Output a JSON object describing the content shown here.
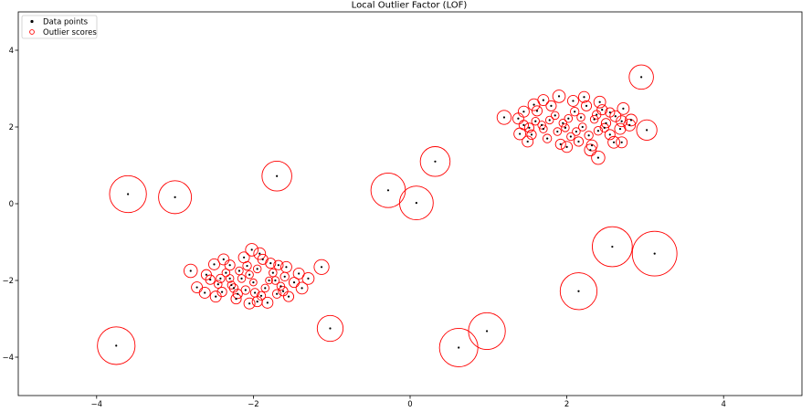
{
  "chart_data": {
    "type": "scatter",
    "title": "Local Outlier Factor (LOF)",
    "xlabel": "",
    "ylabel": "",
    "xlim": [
      -5,
      5
    ],
    "ylim": [
      -5,
      5
    ],
    "xticks": [
      -4,
      -2,
      0,
      2,
      4
    ],
    "yticks": [
      -4,
      -2,
      0,
      2,
      4
    ],
    "xtick_labels": [
      "−4",
      "−2",
      "0",
      "2",
      "4"
    ],
    "ytick_labels": [
      "−4",
      "−2",
      "0",
      "2",
      "4"
    ],
    "grid": false,
    "legend": {
      "placement": "upper-left",
      "entries": [
        {
          "label": "Data points",
          "marker": "dot",
          "color": "#000000"
        },
        {
          "label": "Outlier scores",
          "marker": "circle",
          "color": "#ff0000"
        }
      ]
    },
    "colors": {
      "points": "#000000",
      "scores": "#ff0000"
    },
    "series": [
      {
        "name": "Data points",
        "points": [
          [
            -2.05,
            -1.85,
            0.1
          ],
          [
            -2.3,
            -1.95,
            0.1
          ],
          [
            -1.8,
            -2.0,
            0.09
          ],
          [
            -2.1,
            -2.25,
            0.11
          ],
          [
            -1.95,
            -1.7,
            0.1
          ],
          [
            -2.45,
            -2.1,
            0.1
          ],
          [
            -1.65,
            -2.15,
            0.1
          ],
          [
            -2.2,
            -2.35,
            0.12
          ],
          [
            -1.9,
            -2.4,
            0.11
          ],
          [
            -2.35,
            -1.8,
            0.1
          ],
          [
            -1.75,
            -1.8,
            0.1
          ],
          [
            -2.0,
            -2.05,
            0.09
          ],
          [
            -2.15,
            -1.95,
            0.1
          ],
          [
            -1.85,
            -2.2,
            0.1
          ],
          [
            -2.25,
            -2.2,
            0.11
          ],
          [
            -2.55,
            -1.98,
            0.12
          ],
          [
            -1.6,
            -1.9,
            0.11
          ],
          [
            -2.4,
            -2.3,
            0.12
          ],
          [
            -1.7,
            -2.35,
            0.11
          ],
          [
            -2.08,
            -1.62,
            0.11
          ],
          [
            -1.95,
            -2.55,
            0.13
          ],
          [
            -2.3,
            -1.6,
            0.13
          ],
          [
            -1.78,
            -1.55,
            0.13
          ],
          [
            -2.48,
            -2.42,
            0.14
          ],
          [
            -1.55,
            -2.42,
            0.13
          ],
          [
            -2.6,
            -1.85,
            0.13
          ],
          [
            -1.48,
            -2.05,
            0.13
          ],
          [
            -2.12,
            -1.4,
            0.14
          ],
          [
            -1.88,
            -1.45,
            0.13
          ],
          [
            -2.05,
            -2.6,
            0.14
          ],
          [
            -2.72,
            -2.18,
            0.14
          ],
          [
            -1.42,
            -1.82,
            0.14
          ],
          [
            -1.38,
            -2.2,
            0.15
          ],
          [
            -2.38,
            -1.45,
            0.14
          ],
          [
            -1.68,
            -1.6,
            0.12
          ],
          [
            -2.22,
            -2.48,
            0.13
          ],
          [
            -1.82,
            -2.58,
            0.14
          ],
          [
            -2.62,
            -2.32,
            0.14
          ],
          [
            -1.3,
            -1.95,
            0.15
          ],
          [
            -2.02,
            -1.2,
            0.16
          ],
          [
            -1.92,
            -1.3,
            0.15
          ],
          [
            -2.5,
            -1.58,
            0.14
          ],
          [
            -1.58,
            -1.65,
            0.14
          ],
          [
            -2.28,
            -2.12,
            0.1
          ],
          [
            -1.72,
            -2.0,
            0.1
          ],
          [
            -2.18,
            -1.75,
            0.1
          ],
          [
            -1.98,
            -2.32,
            0.11
          ],
          [
            -2.42,
            -1.95,
            0.11
          ],
          [
            -1.62,
            -2.28,
            0.12
          ],
          [
            -2.8,
            -1.75,
            0.17
          ],
          [
            1.95,
            2.1,
            0.1
          ],
          [
            2.2,
            2.0,
            0.1
          ],
          [
            1.7,
            1.95,
            0.1
          ],
          [
            2.05,
            1.75,
            0.1
          ],
          [
            1.85,
            2.3,
            0.1
          ],
          [
            2.35,
            2.2,
            0.1
          ],
          [
            1.6,
            2.15,
            0.1
          ],
          [
            2.1,
            2.4,
            0.11
          ],
          [
            2.4,
            1.9,
            0.11
          ],
          [
            1.75,
            1.7,
            0.11
          ],
          [
            2.15,
            1.62,
            0.12
          ],
          [
            1.55,
            1.8,
            0.12
          ],
          [
            2.5,
            2.1,
            0.12
          ],
          [
            1.8,
            2.55,
            0.13
          ],
          [
            2.25,
            2.55,
            0.13
          ],
          [
            1.45,
            2.05,
            0.12
          ],
          [
            2.55,
            1.8,
            0.13
          ],
          [
            1.62,
            2.42,
            0.13
          ],
          [
            2.45,
            2.45,
            0.13
          ],
          [
            1.92,
            1.55,
            0.13
          ],
          [
            2.32,
            1.52,
            0.14
          ],
          [
            1.5,
            1.62,
            0.14
          ],
          [
            2.62,
            2.28,
            0.14
          ],
          [
            1.7,
            2.7,
            0.14
          ],
          [
            2.08,
            2.68,
            0.14
          ],
          [
            2.68,
            1.95,
            0.14
          ],
          [
            1.38,
            2.22,
            0.14
          ],
          [
            2.42,
            2.65,
            0.15
          ],
          [
            1.9,
            2.8,
            0.16
          ],
          [
            2.7,
            2.15,
            0.14
          ],
          [
            2.3,
            1.4,
            0.15
          ],
          [
            1.4,
            1.82,
            0.15
          ],
          [
            2.8,
            2.05,
            0.15
          ],
          [
            2.6,
            1.6,
            0.15
          ],
          [
            1.58,
            2.58,
            0.15
          ],
          [
            2.02,
            2.22,
            0.1
          ],
          [
            1.88,
            1.88,
            0.1
          ],
          [
            2.28,
            1.78,
            0.11
          ],
          [
            1.68,
            2.05,
            0.1
          ],
          [
            2.18,
            2.25,
            0.1
          ],
          [
            1.98,
            1.98,
            0.1
          ],
          [
            2.38,
            2.32,
            0.11
          ],
          [
            1.78,
            2.18,
            0.1
          ],
          [
            2.12,
            1.88,
            0.1
          ],
          [
            2.48,
            1.98,
            0.11
          ],
          [
            1.52,
            1.98,
            0.12
          ],
          [
            2.22,
            2.78,
            0.14
          ],
          [
            2.72,
            2.48,
            0.15
          ],
          [
            2.82,
            2.18,
            0.15
          ],
          [
            2.0,
            1.48,
            0.14
          ],
          [
            2.4,
            1.2,
            0.17
          ],
          [
            1.2,
            2.25,
            0.18
          ],
          [
            2.7,
            1.6,
            0.14
          ],
          [
            1.45,
            2.4,
            0.14
          ],
          [
            2.55,
            2.38,
            0.12
          ],
          [
            -3.6,
            0.25,
            0.47
          ],
          [
            -3.0,
            0.17,
            0.42
          ],
          [
            -1.7,
            0.72,
            0.38
          ],
          [
            -0.28,
            0.35,
            0.44
          ],
          [
            0.08,
            0.02,
            0.43
          ],
          [
            0.32,
            1.1,
            0.38
          ],
          [
            -1.02,
            -3.25,
            0.33
          ],
          [
            -3.75,
            -3.7,
            0.48
          ],
          [
            -1.13,
            -1.65,
            0.19
          ],
          [
            0.62,
            -3.75,
            0.49
          ],
          [
            0.98,
            -3.32,
            0.47
          ],
          [
            2.15,
            -2.28,
            0.47
          ],
          [
            2.58,
            -1.12,
            0.51
          ],
          [
            3.12,
            -1.3,
            0.57
          ],
          [
            2.95,
            3.3,
            0.31
          ],
          [
            3.02,
            1.92,
            0.26
          ]
        ]
      }
    ]
  }
}
